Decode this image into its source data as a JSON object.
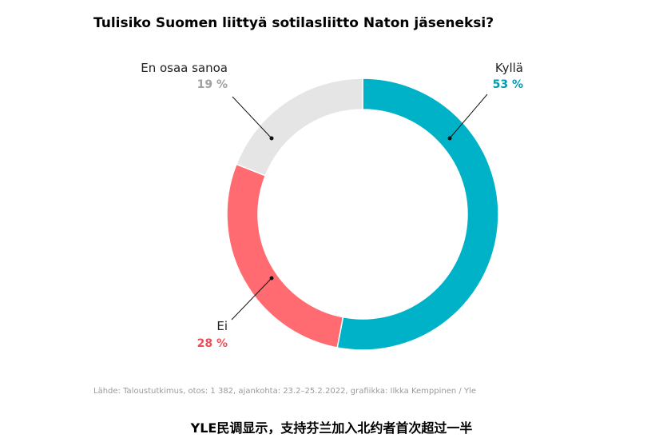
{
  "title": "Tulisiko Suomen liittyä sotilasliitto Naton jäseneksi?",
  "source": "Lähde: Taloustutkimus, otos: 1 382, ajankohta: 23.2–25.2.2022, grafiikka: Ilkka Kemppinen / Yle",
  "caption": "YLE民调显示，支持芬兰加入北约者首次超过一半",
  "chart_data": {
    "type": "pie",
    "variant": "donut",
    "title": "Tulisiko Suomen liittyä sotilasliitto Naton jäseneksi?",
    "unit": "%",
    "slices": [
      {
        "label": "Kyllä",
        "value": 53,
        "value_label": "53 %",
        "color": "#00b2c8"
      },
      {
        "label": "Ei",
        "value": 28,
        "value_label": "28 %",
        "color": "#ff6b70"
      },
      {
        "label": "En osaa sanoa",
        "value": 19,
        "value_label": "19 %",
        "color": "#e5e5e5"
      }
    ],
    "label_colors": {
      "Kyllä": "#009bb0",
      "Ei": "#ef4d57",
      "En osaa sanoa": "#a0a0a0"
    },
    "legend": "none",
    "start_angle": "top",
    "direction": "clockwise"
  }
}
